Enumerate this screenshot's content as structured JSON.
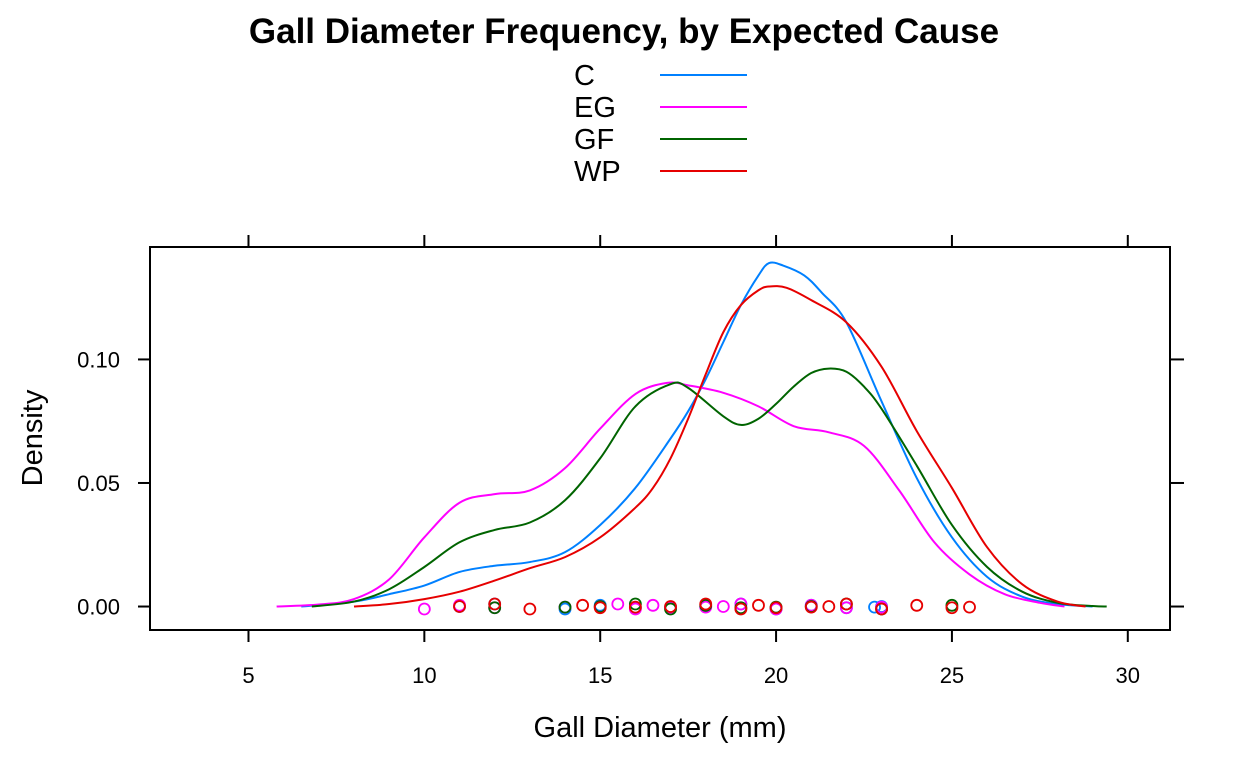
{
  "chart_data": {
    "type": "line",
    "subtype": "density-with-rug",
    "title": "Gall Diameter Frequency, by Expected Cause",
    "xlabel": "Gall Diameter (mm)",
    "ylabel": "Density",
    "xlim": [
      2.2,
      31.2
    ],
    "ylim": [
      -0.0095,
      0.1455
    ],
    "x_ticks": [
      "5",
      "10",
      "15",
      "20",
      "25",
      "30"
    ],
    "y_ticks": [
      "0.00",
      "0.05",
      "0.10"
    ],
    "x_tick_values": [
      5,
      10,
      15,
      20,
      25,
      30
    ],
    "y_tick_values": [
      0,
      0.05,
      0.1
    ],
    "legend_placement": "top",
    "grid": false,
    "series": [
      {
        "name": "C",
        "color": "#0080ff",
        "curve": [
          [
            6.5,
            0
          ],
          [
            8,
            0.002
          ],
          [
            9,
            0.005
          ],
          [
            10,
            0.0085
          ],
          [
            11,
            0.014
          ],
          [
            12,
            0.0165
          ],
          [
            13,
            0.018
          ],
          [
            14,
            0.022
          ],
          [
            15,
            0.033
          ],
          [
            16,
            0.048
          ],
          [
            17,
            0.068
          ],
          [
            17.5,
            0.079
          ],
          [
            18,
            0.092
          ],
          [
            18.5,
            0.107
          ],
          [
            19,
            0.122
          ],
          [
            19.5,
            0.134
          ],
          [
            19.8,
            0.139
          ],
          [
            20.2,
            0.138
          ],
          [
            20.8,
            0.134
          ],
          [
            21.3,
            0.127
          ],
          [
            22,
            0.115
          ],
          [
            23,
            0.083
          ],
          [
            24,
            0.052
          ],
          [
            25,
            0.028
          ],
          [
            26,
            0.012
          ],
          [
            27,
            0.004
          ],
          [
            28,
            0.001
          ],
          [
            29,
            0
          ]
        ],
        "rug": [
          11,
          12,
          14,
          15,
          16,
          17,
          18,
          19,
          20,
          21,
          22,
          22.8,
          23
        ]
      },
      {
        "name": "EG",
        "color": "#ff00ff",
        "curve": [
          [
            5.8,
            0
          ],
          [
            7,
            0.0008
          ],
          [
            8,
            0.003
          ],
          [
            9,
            0.011
          ],
          [
            10,
            0.028
          ],
          [
            11,
            0.042
          ],
          [
            12,
            0.0455
          ],
          [
            13,
            0.047
          ],
          [
            14,
            0.056
          ],
          [
            15,
            0.072
          ],
          [
            16,
            0.086
          ],
          [
            16.9,
            0.0905
          ],
          [
            17.5,
            0.0895
          ],
          [
            18.5,
            0.0865
          ],
          [
            19.5,
            0.081
          ],
          [
            20.5,
            0.073
          ],
          [
            21.5,
            0.0705
          ],
          [
            22.5,
            0.065
          ],
          [
            23.5,
            0.047
          ],
          [
            24.5,
            0.026
          ],
          [
            25.5,
            0.013
          ],
          [
            26.5,
            0.005
          ],
          [
            27.5,
            0.0015
          ],
          [
            28.2,
            0
          ]
        ],
        "rug": [
          10,
          11,
          12,
          14,
          15,
          15.5,
          16,
          16.5,
          17,
          18,
          18.5,
          19,
          20,
          21,
          22,
          23
        ]
      },
      {
        "name": "GF",
        "color": "#006400",
        "curve": [
          [
            6.8,
            0
          ],
          [
            8,
            0.002
          ],
          [
            9,
            0.007
          ],
          [
            10,
            0.016
          ],
          [
            11,
            0.026
          ],
          [
            12,
            0.031
          ],
          [
            13,
            0.034
          ],
          [
            14,
            0.043
          ],
          [
            15,
            0.06
          ],
          [
            16,
            0.081
          ],
          [
            17,
            0.09
          ],
          [
            17.5,
            0.0885
          ],
          [
            18.5,
            0.077
          ],
          [
            19,
            0.0735
          ],
          [
            19.5,
            0.076
          ],
          [
            20,
            0.082
          ],
          [
            20.5,
            0.089
          ],
          [
            21,
            0.0945
          ],
          [
            21.5,
            0.0963
          ],
          [
            22,
            0.095
          ],
          [
            22.5,
            0.089
          ],
          [
            23,
            0.08
          ],
          [
            24,
            0.057
          ],
          [
            25,
            0.033
          ],
          [
            26,
            0.016
          ],
          [
            27,
            0.006
          ],
          [
            28,
            0.0015
          ],
          [
            29,
            0.0002
          ],
          [
            29.4,
            0
          ]
        ],
        "rug": [
          12,
          14,
          15,
          16,
          17,
          18,
          19,
          20,
          21,
          22,
          23,
          25
        ]
      },
      {
        "name": "WP",
        "color": "#e60000",
        "curve": [
          [
            8,
            0
          ],
          [
            9,
            0.001
          ],
          [
            10,
            0.003
          ],
          [
            11,
            0.006
          ],
          [
            12,
            0.0105
          ],
          [
            13,
            0.0155
          ],
          [
            14,
            0.02
          ],
          [
            15,
            0.028
          ],
          [
            16,
            0.04
          ],
          [
            16.5,
            0.048
          ],
          [
            17,
            0.06
          ],
          [
            17.5,
            0.076
          ],
          [
            18,
            0.094
          ],
          [
            18.5,
            0.111
          ],
          [
            19,
            0.122
          ],
          [
            19.5,
            0.128
          ],
          [
            19.8,
            0.1295
          ],
          [
            20.3,
            0.129
          ],
          [
            21,
            0.124
          ],
          [
            22,
            0.115
          ],
          [
            23,
            0.097
          ],
          [
            24,
            0.071
          ],
          [
            25,
            0.048
          ],
          [
            26,
            0.024
          ],
          [
            27,
            0.009
          ],
          [
            28,
            0.002
          ],
          [
            28.8,
            0
          ]
        ],
        "rug": [
          11,
          12,
          13,
          14.5,
          15,
          16,
          17,
          18,
          19,
          19.5,
          20,
          21,
          21.5,
          22,
          23,
          24,
          25,
          25.5
        ]
      }
    ]
  }
}
